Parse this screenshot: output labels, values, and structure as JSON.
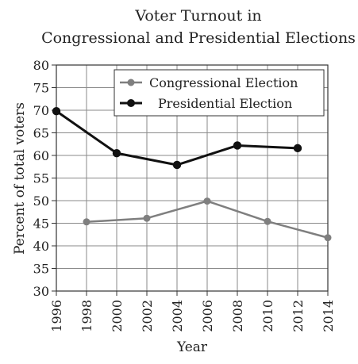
{
  "chart_data": {
    "type": "line",
    "title": [
      "Voter Turnout in",
      "Congressional and Presidential Elections"
    ],
    "xlabel": "Year",
    "ylabel": "Percent of total voters",
    "x_ticks": [
      "1996",
      "1998",
      "2000",
      "2002",
      "2004",
      "2006",
      "2008",
      "2010",
      "2012",
      "2014"
    ],
    "y_ticks": [
      "30",
      "35",
      "40",
      "45",
      "50",
      "55",
      "60",
      "65",
      "70",
      "75",
      "80"
    ],
    "xlim": [
      1996,
      2014
    ],
    "ylim": [
      30,
      80
    ],
    "grid": true,
    "legend_position": "top-right",
    "series": [
      {
        "name": "Congressional Election",
        "color": "#7f7f7f",
        "points": [
          [
            1998,
            45.3
          ],
          [
            2002,
            46.1
          ],
          [
            2006,
            49.9
          ],
          [
            2010,
            45.4
          ],
          [
            2014,
            41.8
          ]
        ]
      },
      {
        "name": "Presidential Election",
        "color": "#111111",
        "points": [
          [
            1996,
            69.8
          ],
          [
            2000,
            60.5
          ],
          [
            2004,
            57.9
          ],
          [
            2008,
            62.2
          ],
          [
            2012,
            61.6
          ]
        ]
      }
    ]
  }
}
